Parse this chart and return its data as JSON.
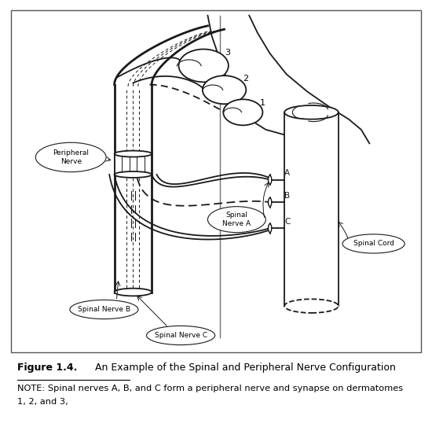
{
  "bg_color": "#ffffff",
  "line_color": "#1a1a1a",
  "figure_label": "Figure 1.4.",
  "figure_title": "  An Example of the Spinal and Peripheral Nerve Configuration",
  "note_line1": "NOTE: Spinal nerves A, B, and C form a peripheral nerve and synapse on dermatomes",
  "note_line2": "1, 2, and 3,",
  "label_peripheral_nerve": "Peripheral\nNerve",
  "label_spinal_nerve_a": "Spinal\nNerve A",
  "label_spinal_nerve_b": "Spinal Nerve B",
  "label_spinal_nerve_c": "Spinal Nerve C",
  "label_spinal_cord": "Spinal Cord",
  "label_A": "A",
  "label_B": "B",
  "label_C": "C",
  "label_1": "1",
  "label_2": "2",
  "label_3": "3"
}
